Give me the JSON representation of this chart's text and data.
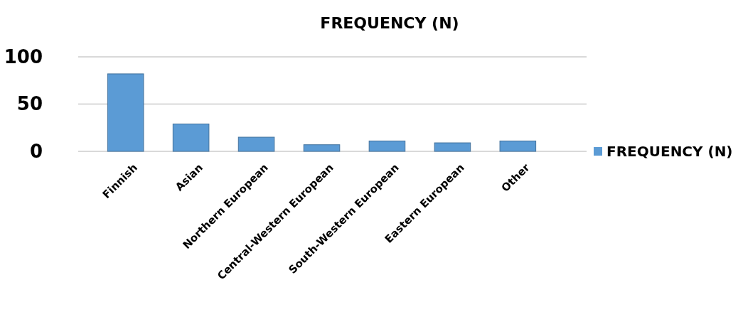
{
  "chart_data": {
    "type": "bar",
    "title": "FREQUENCY (N)",
    "categories": [
      "Finnish",
      "Asian",
      "Northern European",
      "Central-Western European",
      "South-Western European",
      "Eastern European",
      "Other"
    ],
    "series": [
      {
        "name": "FREQUENCY (N)",
        "color": "#5b9bd5",
        "values": [
          82,
          29,
          15,
          7,
          11,
          9,
          11
        ]
      }
    ],
    "ylim": [
      0,
      100
    ],
    "yticks": [
      0,
      50,
      100
    ],
    "grid": "y",
    "legend": "right"
  }
}
